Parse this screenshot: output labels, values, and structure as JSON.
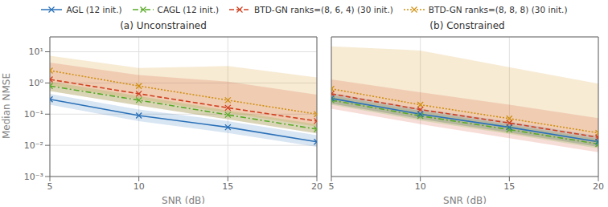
{
  "chart_data": [
    {
      "type": "line",
      "title": "(a) Unconstrained",
      "x_label": "SNR (dB)",
      "y_label": "Median NMSE",
      "x": [
        5,
        10,
        15,
        20
      ],
      "xlim": [
        5,
        20
      ],
      "xticks": [
        5,
        10,
        15,
        20
      ],
      "ylim": [
        0.001,
        30
      ],
      "yticks": [
        {
          "value": 0.001,
          "label": "10⁻³"
        },
        {
          "value": 0.01,
          "label": "10⁻²"
        },
        {
          "value": 0.1,
          "label": "10⁻¹"
        },
        {
          "value": 1,
          "label": "10⁰"
        },
        {
          "value": 10,
          "label": "10¹"
        }
      ],
      "log": "y",
      "grid": true,
      "legend": "top",
      "series": [
        {
          "name": "AGL (12 init.)",
          "color": "#2970b8",
          "line_style": "solid",
          "marker": "x",
          "values": [
            0.3,
            0.09,
            0.038,
            0.013
          ],
          "lo": [
            0.2,
            0.06,
            0.025,
            0.009
          ],
          "hi": [
            0.45,
            0.14,
            0.06,
            0.021
          ]
        },
        {
          "name": "CAGL (12 init.)",
          "color": "#5aaa28",
          "line_style": "dashdot",
          "marker": "x",
          "values": [
            0.8,
            0.28,
            0.095,
            0.033
          ],
          "lo": [
            0.55,
            0.19,
            0.068,
            0.024
          ],
          "hi": [
            1.1,
            0.38,
            0.13,
            0.047
          ]
        },
        {
          "name": "BTD-GN ranks=(8, 6, 4) (30 init.)",
          "color": "#d04020",
          "line_style": "dashed",
          "marker": "x",
          "values": [
            1.3,
            0.45,
            0.16,
            0.06
          ],
          "lo": [
            0.55,
            0.19,
            0.068,
            0.024
          ],
          "hi": [
            4.5,
            1.8,
            1.1,
            0.42
          ]
        },
        {
          "name": "BTD-GN ranks=(8, 8, 8) (30 init.)",
          "color": "#d09010",
          "line_style": "dotted",
          "marker": "x",
          "values": [
            2.5,
            0.8,
            0.28,
            0.1
          ],
          "lo": [
            0.85,
            0.3,
            0.11,
            0.04
          ],
          "hi": [
            7.5,
            3.0,
            3.5,
            1.5
          ]
        }
      ]
    },
    {
      "type": "line",
      "title": "(b) Constrained",
      "x_label": "SNR (dB)",
      "x": [
        5,
        10,
        15,
        20
      ],
      "xlim": [
        5,
        20
      ],
      "xticks": [
        5,
        10,
        15,
        20
      ],
      "ylim": [
        0.001,
        30
      ],
      "yticks": [
        {
          "value": 0.001,
          "label": "10⁻³"
        },
        {
          "value": 0.01,
          "label": "10⁻²"
        },
        {
          "value": 0.1,
          "label": "10⁻¹"
        },
        {
          "value": 1,
          "label": "10⁰"
        },
        {
          "value": 10,
          "label": "10¹"
        }
      ],
      "log": "y",
      "grid": true,
      "tick_labels": "x",
      "series": [
        {
          "name": "AGL (12 init.)",
          "color": "#2970b8",
          "line_style": "solid",
          "marker": "x",
          "values": [
            0.32,
            0.1,
            0.038,
            0.013
          ],
          "lo": [
            0.22,
            0.07,
            0.026,
            0.009
          ],
          "hi": [
            0.48,
            0.15,
            0.057,
            0.02
          ]
        },
        {
          "name": "CAGL (12 init.)",
          "color": "#5aaa28",
          "line_style": "dashdot",
          "marker": "x",
          "values": [
            0.28,
            0.088,
            0.032,
            0.011
          ],
          "lo": [
            0.2,
            0.062,
            0.023,
            0.008
          ],
          "hi": [
            0.4,
            0.126,
            0.046,
            0.016
          ]
        },
        {
          "name": "BTD-GN ranks=(8, 6, 4) (30 init.)",
          "color": "#d04020",
          "line_style": "dashed",
          "marker": "x",
          "values": [
            0.45,
            0.14,
            0.052,
            0.018
          ],
          "lo": [
            0.15,
            0.048,
            0.017,
            0.006
          ],
          "hi": [
            1.3,
            0.5,
            0.2,
            0.075
          ]
        },
        {
          "name": "BTD-GN ranks=(8, 8, 8) (30 init.)",
          "color": "#d09010",
          "line_style": "dotted",
          "marker": "x",
          "values": [
            0.65,
            0.2,
            0.072,
            0.025
          ],
          "lo": [
            0.22,
            0.07,
            0.025,
            0.009
          ],
          "hi": [
            15.0,
            11.0,
            3.2,
            0.95
          ]
        }
      ]
    }
  ]
}
